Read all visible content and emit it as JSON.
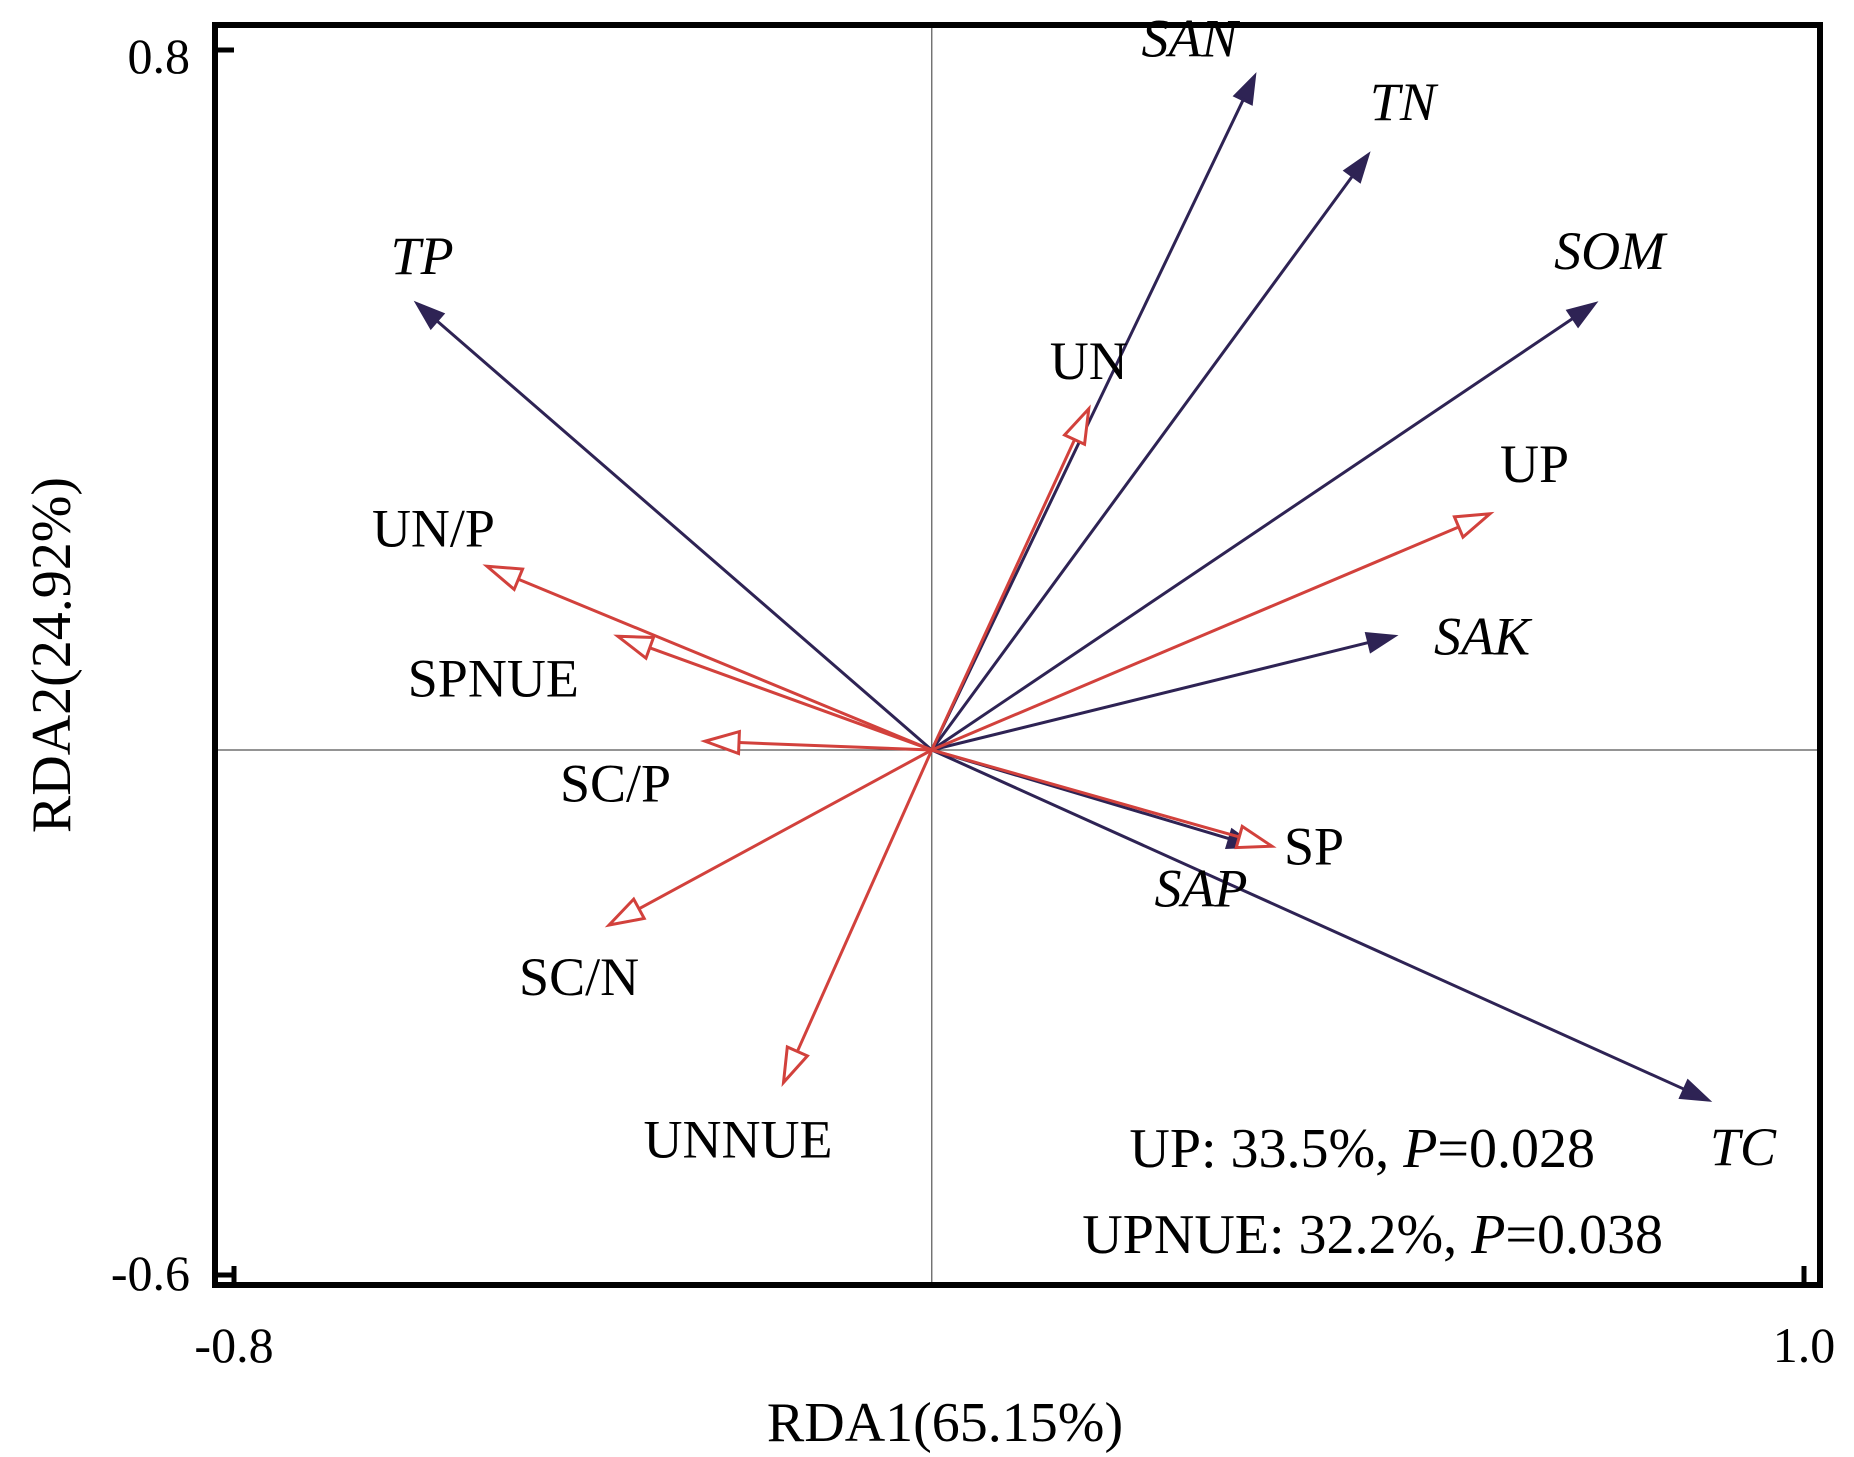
{
  "chart_data": {
    "type": "biplot",
    "title": "",
    "xlabel": "RDA1(65.15%)",
    "ylabel": "RDA2(24.92%)",
    "xlim": [
      -0.8,
      1.0
    ],
    "ylim": [
      -0.6,
      0.8
    ],
    "x_tick_labels": [
      {
        "value": -0.8,
        "label": "-0.8"
      },
      {
        "value": 1.0,
        "label": "1.0"
      }
    ],
    "y_tick_labels": [
      {
        "value": 0.8,
        "label": "0.8"
      },
      {
        "value": -0.6,
        "label": "-0.6"
      }
    ],
    "reference_lines": {
      "x": 0,
      "y": 0
    },
    "grid": false,
    "legend": "none",
    "series": [
      {
        "style": "solid-head",
        "color": "#2e2354",
        "label_italic": true,
        "vectors": [
          {
            "name": "SAN",
            "x": 0.37,
            "y": 0.77
          },
          {
            "name": "TN",
            "x": 0.5,
            "y": 0.68
          },
          {
            "name": "SOM",
            "x": 0.76,
            "y": 0.51
          },
          {
            "name": "TP",
            "x": -0.59,
            "y": 0.51
          },
          {
            "name": "SAK",
            "x": 0.53,
            "y": 0.13
          },
          {
            "name": "SAP",
            "x": 0.37,
            "y": -0.11
          },
          {
            "name": "TC",
            "x": 0.89,
            "y": -0.4
          }
        ]
      },
      {
        "style": "open-head",
        "color": "#d2413c",
        "label_italic": false,
        "vectors": [
          {
            "name": "UN",
            "x": 0.18,
            "y": 0.39
          },
          {
            "name": "UP",
            "x": 0.64,
            "y": 0.27
          },
          {
            "name": "UN/P",
            "x": -0.51,
            "y": 0.21
          },
          {
            "name": "SPNUE",
            "x": -0.36,
            "y": 0.13
          },
          {
            "name": "SC/P",
            "x": -0.26,
            "y": 0.01
          },
          {
            "name": "SP",
            "x": 0.39,
            "y": -0.11
          },
          {
            "name": "SC/N",
            "x": -0.37,
            "y": -0.2
          },
          {
            "name": "UNNUE",
            "x": -0.17,
            "y": -0.38
          }
        ]
      }
    ],
    "annotations": [
      {
        "text_parts": [
          {
            "t": "UP: 33.5%, "
          },
          {
            "t": "P",
            "italic": true
          },
          {
            "t": "=0.028"
          }
        ]
      },
      {
        "text_parts": [
          {
            "t": "UPNUE: 32.2%, "
          },
          {
            "t": "P",
            "italic": true
          },
          {
            "t": "=0.038"
          }
        ]
      }
    ]
  }
}
